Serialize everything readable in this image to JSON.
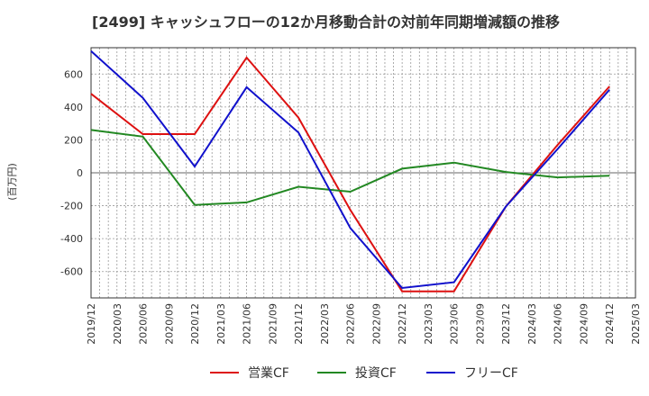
{
  "chart_data": {
    "type": "line",
    "title": "[2499]  キャッシュフローの12か月移動合計の対前年同期増減額の推移",
    "ylabel": "(百万円)",
    "xlabel": "",
    "ylim": [
      -760,
      760
    ],
    "yticks": [
      -600,
      -400,
      -200,
      0,
      200,
      400,
      600
    ],
    "categories": [
      "2019/12",
      "2020/03",
      "2020/06",
      "2020/09",
      "2020/12",
      "2021/03",
      "2021/06",
      "2021/09",
      "2021/12",
      "2022/03",
      "2022/06",
      "2022/09",
      "2022/12",
      "2023/03",
      "2023/06",
      "2023/09",
      "2023/12",
      "2024/03",
      "2024/06",
      "2024/09",
      "2024/12",
      "2025/03"
    ],
    "series": [
      {
        "name": "営業CF",
        "color": "#dd1111",
        "values": [
          480,
          null,
          235,
          null,
          235,
          null,
          700,
          null,
          335,
          null,
          -225,
          null,
          -720,
          null,
          -720,
          null,
          -205,
          null,
          170,
          null,
          525,
          null
        ]
      },
      {
        "name": "投資CF",
        "color": "#228822",
        "values": [
          260,
          null,
          220,
          null,
          -195,
          null,
          -180,
          null,
          -85,
          null,
          -115,
          null,
          25,
          null,
          62,
          null,
          5,
          null,
          -28,
          null,
          -18,
          null
        ]
      },
      {
        "name": "フリーCF",
        "color": "#1111cc",
        "values": [
          740,
          null,
          455,
          null,
          38,
          null,
          520,
          null,
          245,
          null,
          -335,
          null,
          -700,
          null,
          -665,
          null,
          -205,
          null,
          145,
          null,
          505,
          null
        ]
      }
    ],
    "grid": true,
    "legend": "bottom-center"
  }
}
